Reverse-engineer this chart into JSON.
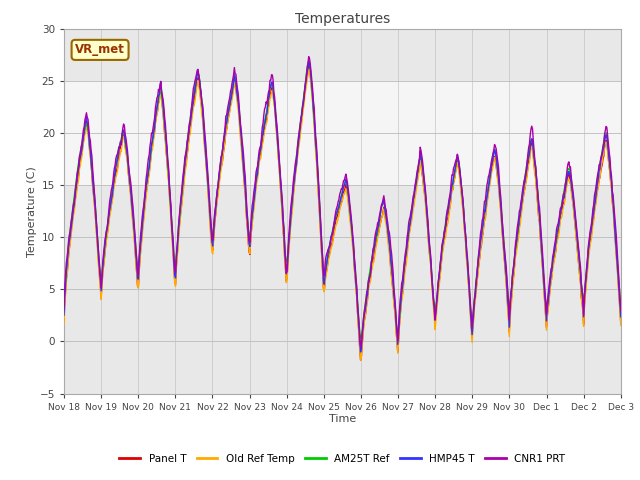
{
  "title": "Temperatures",
  "xlabel": "Time",
  "ylabel": "Temperature (C)",
  "ylim": [
    -5,
    30
  ],
  "n_days": 15,
  "background_color": "#ffffff",
  "plot_bg_color": "#e8e8e8",
  "shaded_region_color": "#f5f5f5",
  "annotation_box": {
    "text": "VR_met",
    "facecolor": "#ffffcc",
    "edgecolor": "#996600",
    "textcolor": "#993300"
  },
  "legend": [
    {
      "label": "Panel T",
      "color": "#dd0000"
    },
    {
      "label": "Old Ref Temp",
      "color": "#ffaa00"
    },
    {
      "label": "AM25T Ref",
      "color": "#00cc00"
    },
    {
      "label": "HMP45 T",
      "color": "#3333ff"
    },
    {
      "label": "CNR1 PRT",
      "color": "#aa00aa"
    }
  ],
  "tick_labels": [
    "Nov 18",
    "Nov 19",
    "Nov 20",
    "Nov 21",
    "Nov 22",
    "Nov 23",
    "Nov 24",
    "Nov 25",
    "Nov 26",
    "Nov 27",
    "Nov 28",
    "Nov 29",
    "Nov 30",
    "Dec 1",
    "Dec 2",
    "Dec 3"
  ],
  "seed": 42
}
